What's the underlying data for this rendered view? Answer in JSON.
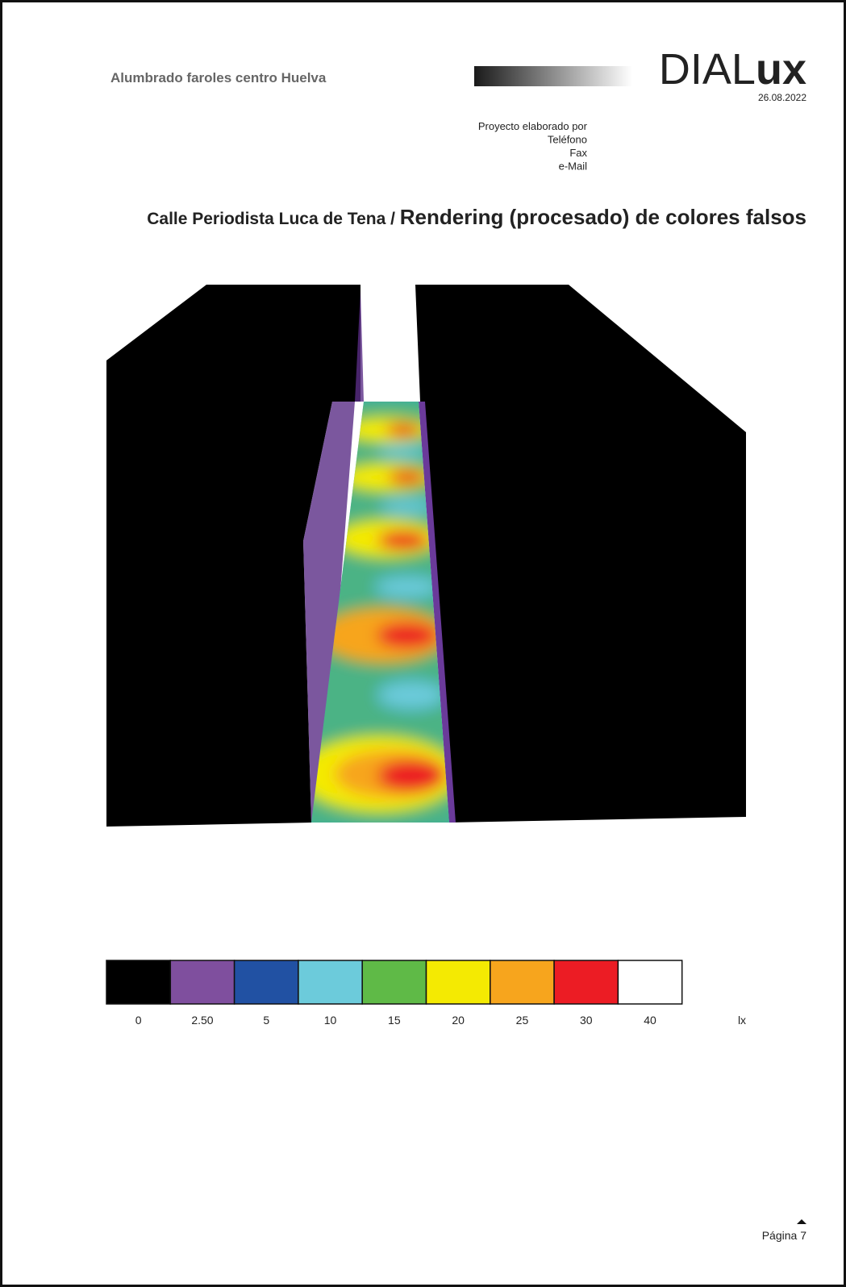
{
  "header": {
    "project": "Alumbrado faroles centro Huelva",
    "logo": {
      "light": "DIAL",
      "bold": "ux"
    },
    "date": "26.08.2022",
    "contact": [
      "Proyecto elaborado por",
      "Teléfono",
      "Fax",
      "e-Mail"
    ]
  },
  "section": {
    "room": "Calle Periodista Luca de Tena / ",
    "title": "Rendering (procesado) de colores falsos"
  },
  "legend": {
    "items": [
      {
        "label": "0",
        "color": "#000000"
      },
      {
        "label": "2.50",
        "color": "#7f4f9e"
      },
      {
        "label": "5",
        "color": "#2151a3"
      },
      {
        "label": "10",
        "color": "#6ccbdb"
      },
      {
        "label": "15",
        "color": "#5fba47"
      },
      {
        "label": "20",
        "color": "#f4ea02"
      },
      {
        "label": "25",
        "color": "#f7a51d"
      },
      {
        "label": "30",
        "color": "#ec1c24"
      },
      {
        "label": "40",
        "color": "#ffffff"
      }
    ],
    "unit": "lx"
  },
  "footer": {
    "page": "Página 7"
  }
}
